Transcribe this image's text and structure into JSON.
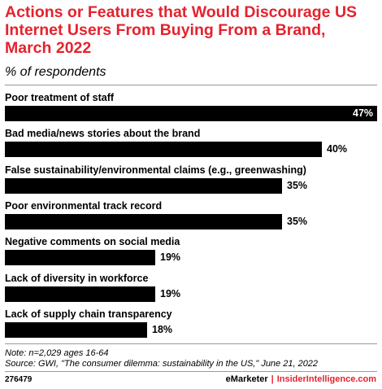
{
  "header": {
    "title": "Actions or Features that Would Discourage US Internet Users From Buying From a Brand, March 2022",
    "subtitle": "% of respondents"
  },
  "chart_data": {
    "type": "bar",
    "orientation": "horizontal",
    "title": "Actions or Features that Would Discourage US Internet Users From Buying From a Brand, March 2022",
    "subtitle": "% of respondents",
    "categories": [
      "Poor treatment of staff",
      "Bad media/news stories about the brand",
      "False sustainability/environmental claims (e.g., greenwashing)",
      "Poor environmental track record",
      "Negative comments on social media",
      "Lack of diversity in workforce",
      "Lack of supply chain transparency"
    ],
    "values": [
      47,
      40,
      35,
      35,
      19,
      19,
      18
    ],
    "value_labels": [
      "47%",
      "40%",
      "35%",
      "35%",
      "19%",
      "19%",
      "18%"
    ],
    "xlim": [
      0,
      47
    ],
    "grid": false,
    "bar_color": "#000000"
  },
  "notes": {
    "note": "Note: n=2,029 ages 16-64",
    "source": "Source: GWI, \"The consumer dilemma: sustainability in the US,\" June 21, 2022"
  },
  "footer": {
    "chart_id": "276479",
    "brand_emarketer": "eMarketer",
    "brand_separator": "|",
    "brand_insider": "InsiderIntelligence.com"
  },
  "colors": {
    "accent": "#e4232e",
    "bar": "#000000",
    "rule": "#999999"
  }
}
